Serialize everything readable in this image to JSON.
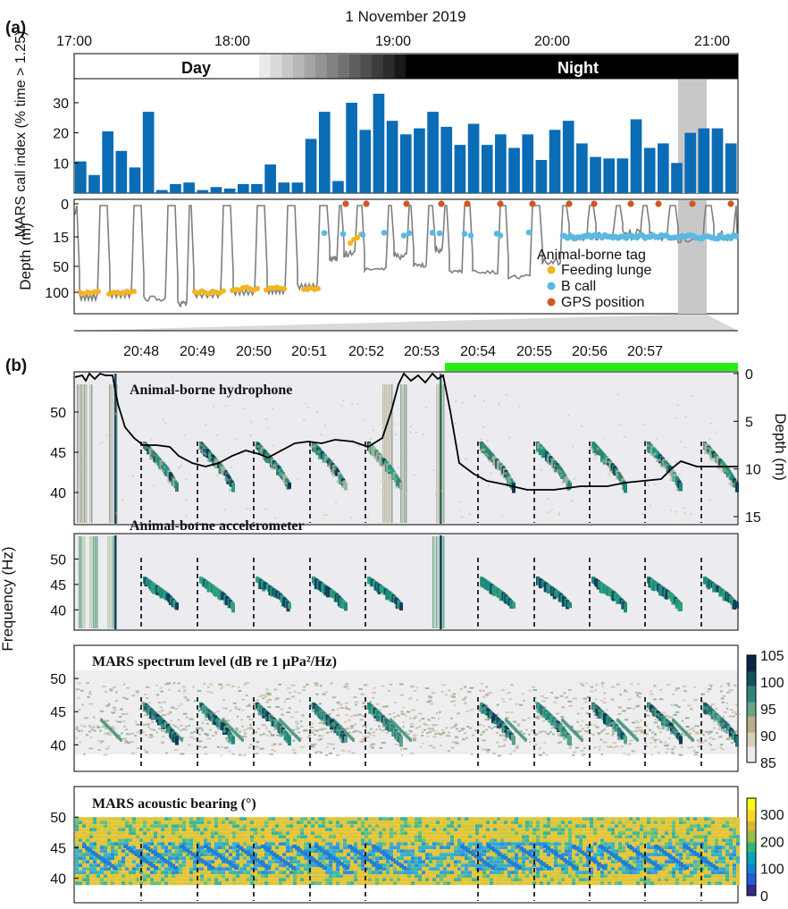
{
  "panel_a": {
    "label": "(a)",
    "date": "1 November 2019",
    "time_ticks": [
      "17:00",
      "18:00",
      "19:00",
      "20:00",
      "21:00"
    ],
    "day_label": "Day",
    "night_label": "Night",
    "colors": {
      "bar": "#0b6cb6",
      "depth_line": "#7f7f7f",
      "lunge": "#f2b51d",
      "bcall": "#58b9e3",
      "gps": "#d35620",
      "shade": "#bfbfbf"
    }
  },
  "panel_b": {
    "label": "(b)",
    "time_ticks": [
      "20:48",
      "20:49",
      "20:50",
      "20:51",
      "20:52",
      "20:53",
      "20:54",
      "20:55",
      "20:56",
      "20:57"
    ],
    "subplot_titles": {
      "hydrophone": "Animal-borne hydrophone",
      "accelerometer": "Animal-borne accelerometer",
      "spectrum": "MARS spectrum level (dB re 1 μPa²/Hz)",
      "bearing": "MARS acoustic bearing (°)"
    },
    "ylabel": "Frequency (Hz)",
    "ylabel_right": "Depth (m)",
    "freq_ticks": [
      "40",
      "45",
      "50"
    ],
    "depth_ticks_right": [
      "0",
      "5",
      "10",
      "15"
    ],
    "colorbar_spectrum": {
      "ticks": [
        "85",
        "90",
        "95",
        "100",
        "105"
      ],
      "range": [
        85,
        105
      ]
    },
    "colorbar_bearing": {
      "ticks": [
        "0",
        "100",
        "200",
        "300"
      ],
      "range": [
        0,
        360
      ]
    },
    "colors": {
      "surface_bar": "#22ee11",
      "spectro_bg": "#ecebef",
      "call_dark": "#0c3b57",
      "call_mid": "#1f8a7a"
    }
  },
  "chart_data": [
    {
      "type": "bar",
      "title": "",
      "ylabel": "MARS call index (% time > 1.25)",
      "ylim": [
        0,
        38
      ],
      "yticks": [
        10,
        20,
        30
      ],
      "xrange": [
        "17:00",
        "21:10"
      ],
      "series": [
        {
          "values": [
            10.5,
            6,
            20.5,
            14,
            8.5,
            27,
            1,
            3,
            3.5,
            1,
            2,
            1.5,
            3,
            3,
            9.5,
            3.5,
            3.5,
            18,
            27,
            4,
            30,
            21,
            33,
            24,
            19.5,
            21.5,
            27,
            22,
            16,
            23,
            16,
            19.5,
            15,
            19.5,
            11,
            21,
            24,
            16.5,
            12,
            11.5,
            11.5,
            24.5,
            15,
            16.5,
            10,
            20,
            21.5,
            21.5,
            16.5
          ]
        }
      ]
    },
    {
      "type": "line",
      "title": "",
      "ylabel": "Depth (m)",
      "y_ticks": [
        0,
        15,
        50,
        100
      ],
      "legend_title": "Animal-borne tag",
      "legend_position": "bottom-right",
      "series": [
        {
          "name": "Feeding lunge",
          "marker": "dot"
        },
        {
          "name": "B call",
          "marker": "dot"
        },
        {
          "name": "GPS position",
          "marker": "dot"
        }
      ]
    },
    {
      "type": "heatmap",
      "title": "Animal-borne hydrophone",
      "xlim": [
        "20:47:15",
        "20:57:45"
      ],
      "ylim": [
        36,
        55
      ],
      "call_times": [
        "20:48:27",
        "20:49:25",
        "20:50:20",
        "20:51:15",
        "20:52:10",
        "20:54:03",
        "20:55:00",
        "20:55:55",
        "20:56:52",
        "20:57:47"
      ],
      "depth_right_axis": [
        0,
        16
      ]
    },
    {
      "type": "heatmap",
      "title": "Animal-borne accelerometer",
      "ylim": [
        36,
        55
      ]
    },
    {
      "type": "heatmap",
      "title": "MARS spectrum level (dB re 1 μPa²/Hz)",
      "ylim": [
        36,
        55
      ],
      "color_range": [
        85,
        105
      ]
    },
    {
      "type": "heatmap",
      "title": "MARS acoustic bearing (°)",
      "ylim": [
        36,
        55
      ],
      "color_range": [
        0,
        360
      ]
    }
  ]
}
